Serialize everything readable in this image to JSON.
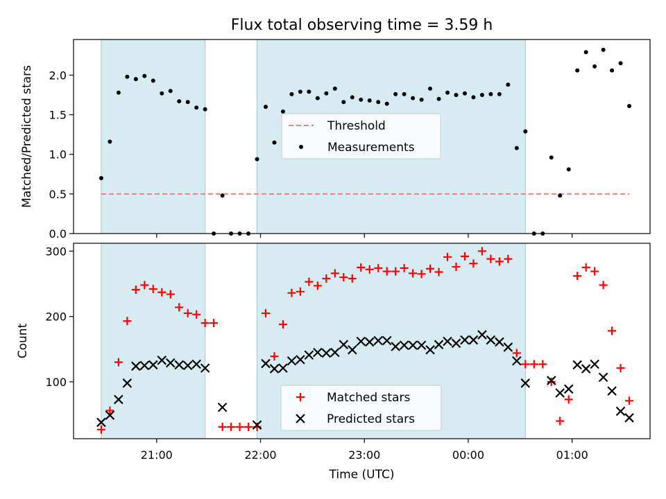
{
  "chart_data": {
    "title": "Flux total observing time = 3.59 h",
    "x_unit_note": "time of day (UTC); tick labels shown",
    "xlabel": "Time (UTC)",
    "x_ticks": [
      "21:00",
      "22:00",
      "23:00",
      "00:00",
      "01:00"
    ],
    "x_tick_values": [
      "21:00",
      "22:00",
      "23:00",
      "00:00",
      "01:00"
    ],
    "observing_windows": [
      {
        "start": "20:28",
        "end": "21:28"
      },
      {
        "start": "21:58",
        "end": "00:33"
      }
    ],
    "panels": [
      {
        "type": "scatter",
        "ylabel": "Matched/Predicted stars",
        "ylim": [
          0,
          2.45
        ],
        "y_ticks": [
          "0.0",
          "0.5",
          "1.0",
          "1.5",
          "2.0"
        ],
        "threshold": {
          "name": "Threshold",
          "value": 0.5,
          "x_start": "20:28",
          "x_end": "01:33",
          "color": "#f08080"
        },
        "series": [
          {
            "name": "Measurements",
            "color": "#000000",
            "marker": "dot",
            "points": [
              [
                "20:28",
                0.7
              ],
              [
                "20:33",
                1.16
              ],
              [
                "20:38",
                1.78
              ],
              [
                "20:43",
                1.98
              ],
              [
                "20:48",
                1.95
              ],
              [
                "20:53",
                1.99
              ],
              [
                "20:58",
                1.93
              ],
              [
                "21:03",
                1.77
              ],
              [
                "21:08",
                1.8
              ],
              [
                "21:13",
                1.67
              ],
              [
                "21:18",
                1.66
              ],
              [
                "21:23",
                1.59
              ],
              [
                "21:28",
                1.57
              ],
              [
                "21:33",
                0.0
              ],
              [
                "21:38",
                0.48
              ],
              [
                "21:43",
                0.0
              ],
              [
                "21:48",
                0.0
              ],
              [
                "21:53",
                0.0
              ],
              [
                "21:58",
                0.94
              ],
              [
                "22:03",
                1.6
              ],
              [
                "22:08",
                1.15
              ],
              [
                "22:13",
                1.54
              ],
              [
                "22:18",
                1.76
              ],
              [
                "22:23",
                1.79
              ],
              [
                "22:28",
                1.79
              ],
              [
                "22:33",
                1.71
              ],
              [
                "22:38",
                1.77
              ],
              [
                "22:43",
                1.83
              ],
              [
                "22:48",
                1.66
              ],
              [
                "22:53",
                1.72
              ],
              [
                "22:58",
                1.69
              ],
              [
                "23:03",
                1.68
              ],
              [
                "23:08",
                1.66
              ],
              [
                "23:13",
                1.64
              ],
              [
                "23:18",
                1.76
              ],
              [
                "23:23",
                1.76
              ],
              [
                "23:28",
                1.71
              ],
              [
                "23:33",
                1.69
              ],
              [
                "23:38",
                1.83
              ],
              [
                "23:43",
                1.7
              ],
              [
                "23:48",
                1.78
              ],
              [
                "23:53",
                1.75
              ],
              [
                "23:58",
                1.77
              ],
              [
                "00:03",
                1.72
              ],
              [
                "00:08",
                1.75
              ],
              [
                "00:13",
                1.76
              ],
              [
                "00:18",
                1.76
              ],
              [
                "00:23",
                1.88
              ],
              [
                "00:28",
                1.08
              ],
              [
                "00:33",
                1.29
              ],
              [
                "00:38",
                0.0
              ],
              [
                "00:43",
                0.0
              ],
              [
                "00:48",
                0.96
              ],
              [
                "00:53",
                0.48
              ],
              [
                "00:58",
                0.81
              ],
              [
                "01:03",
                2.06
              ],
              [
                "01:08",
                2.29
              ],
              [
                "01:13",
                2.11
              ],
              [
                "01:18",
                2.32
              ],
              [
                "01:23",
                2.06
              ],
              [
                "01:28",
                2.15
              ],
              [
                "01:33",
                1.61
              ]
            ]
          }
        ],
        "legend": {
          "placement": "center",
          "entries": [
            "Threshold",
            "Measurements"
          ]
        }
      },
      {
        "type": "scatter",
        "ylabel": "Count",
        "ylim": [
          13,
          312
        ],
        "y_ticks": [
          "100",
          "200",
          "300"
        ],
        "series": [
          {
            "name": "Matched stars",
            "color": "#ff0000",
            "marker": "plus",
            "points": [
              [
                "20:28",
                27
              ],
              [
                "20:33",
                56
              ],
              [
                "20:38",
                130
              ],
              [
                "20:43",
                193
              ],
              [
                "20:48",
                241
              ],
              [
                "20:53",
                248
              ],
              [
                "20:58",
                242
              ],
              [
                "21:03",
                237
              ],
              [
                "21:08",
                234
              ],
              [
                "21:13",
                214
              ],
              [
                "21:18",
                205
              ],
              [
                "21:23",
                203
              ],
              [
                "21:28",
                190
              ],
              [
                "21:33",
                190
              ],
              [
                "21:38",
                31
              ],
              [
                "21:43",
                31
              ],
              [
                "21:48",
                31
              ],
              [
                "21:53",
                31
              ],
              [
                "21:58",
                31
              ],
              [
                "22:03",
                205
              ],
              [
                "22:08",
                139
              ],
              [
                "22:13",
                188
              ],
              [
                "22:18",
                236
              ],
              [
                "22:23",
                238
              ],
              [
                "22:28",
                253
              ],
              [
                "22:33",
                247
              ],
              [
                "22:38",
                258
              ],
              [
                "22:43",
                266
              ],
              [
                "22:48",
                260
              ],
              [
                "22:53",
                258
              ],
              [
                "22:58",
                275
              ],
              [
                "23:03",
                272
              ],
              [
                "23:08",
                274
              ],
              [
                "23:13",
                269
              ],
              [
                "23:18",
                269
              ],
              [
                "23:23",
                274
              ],
              [
                "23:28",
                266
              ],
              [
                "23:33",
                265
              ],
              [
                "23:38",
                273
              ],
              [
                "23:43",
                268
              ],
              [
                "23:48",
                291
              ],
              [
                "23:53",
                276
              ],
              [
                "23:58",
                292
              ],
              [
                "00:03",
                281
              ],
              [
                "00:08",
                300
              ],
              [
                "00:13",
                288
              ],
              [
                "00:18",
                284
              ],
              [
                "00:23",
                288
              ],
              [
                "00:28",
                144
              ],
              [
                "00:33",
                127
              ],
              [
                "00:38",
                127
              ],
              [
                "00:43",
                127
              ],
              [
                "00:48",
                100
              ],
              [
                "00:53",
                40
              ],
              [
                "00:58",
                73
              ],
              [
                "01:03",
                262
              ],
              [
                "01:08",
                275
              ],
              [
                "01:13",
                269
              ],
              [
                "01:18",
                248
              ],
              [
                "01:23",
                178
              ],
              [
                "01:28",
                121
              ],
              [
                "01:33",
                71
              ]
            ]
          },
          {
            "name": "Predicted stars",
            "color": "#000000",
            "marker": "x",
            "points": [
              [
                "20:28",
                38
              ],
              [
                "20:33",
                49
              ],
              [
                "20:38",
                73
              ],
              [
                "20:43",
                98
              ],
              [
                "20:48",
                124
              ],
              [
                "20:53",
                125
              ],
              [
                "20:58",
                126
              ],
              [
                "21:03",
                133
              ],
              [
                "21:08",
                129
              ],
              [
                "21:13",
                126
              ],
              [
                "21:18",
                125
              ],
              [
                "21:23",
                127
              ],
              [
                "21:28",
                121
              ],
              [
                "21:38",
                61
              ],
              [
                "21:58",
                34
              ],
              [
                "22:03",
                128
              ],
              [
                "22:08",
                120
              ],
              [
                "22:13",
                121
              ],
              [
                "22:18",
                132
              ],
              [
                "22:23",
                134
              ],
              [
                "22:28",
                141
              ],
              [
                "22:33",
                145
              ],
              [
                "22:38",
                144
              ],
              [
                "22:43",
                145
              ],
              [
                "22:48",
                157
              ],
              [
                "22:53",
                149
              ],
              [
                "22:58",
                162
              ],
              [
                "23:03",
                161
              ],
              [
                "23:08",
                163
              ],
              [
                "23:13",
                163
              ],
              [
                "23:18",
                154
              ],
              [
                "23:23",
                156
              ],
              [
                "23:28",
                156
              ],
              [
                "23:33",
                156
              ],
              [
                "23:38",
                149
              ],
              [
                "23:43",
                157
              ],
              [
                "23:48",
                162
              ],
              [
                "23:53",
                159
              ],
              [
                "23:58",
                164
              ],
              [
                "00:03",
                164
              ],
              [
                "00:08",
                172
              ],
              [
                "00:13",
                164
              ],
              [
                "00:18",
                161
              ],
              [
                "00:23",
                153
              ],
              [
                "00:28",
                132
              ],
              [
                "00:33",
                98
              ],
              [
                "00:48",
                102
              ],
              [
                "00:53",
                83
              ],
              [
                "00:58",
                89
              ],
              [
                "01:03",
                126
              ],
              [
                "01:08",
                120
              ],
              [
                "01:13",
                127
              ],
              [
                "01:18",
                107
              ],
              [
                "01:23",
                86
              ],
              [
                "01:28",
                55
              ],
              [
                "01:33",
                45
              ]
            ]
          }
        ],
        "legend": {
          "placement": "lower center",
          "entries": [
            "Matched stars",
            "Predicted stars"
          ]
        }
      }
    ]
  }
}
